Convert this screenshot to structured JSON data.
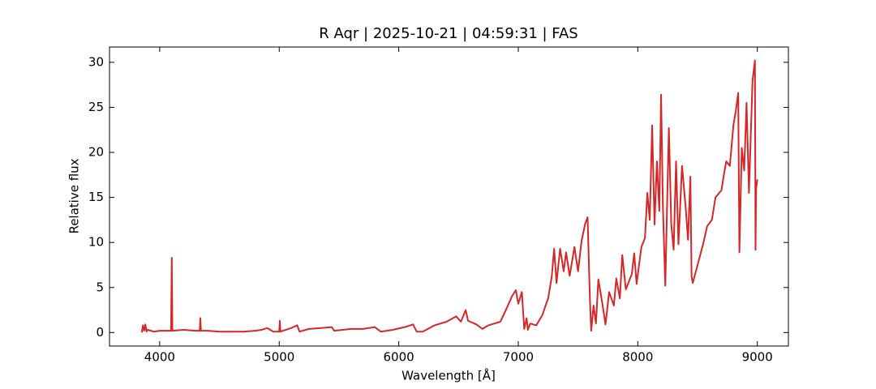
{
  "chart_data": {
    "type": "line",
    "title": "R Aqr | 2025-10-21 | 04:59:31 | FAS",
    "xlabel": "Wavelength [Å]",
    "ylabel": "Relative flux",
    "xlim": [
      3580,
      9260
    ],
    "ylim": [
      -1.5,
      31.7
    ],
    "xticks": [
      4000,
      5000,
      6000,
      7000,
      8000,
      9000
    ],
    "yticks": [
      0,
      5,
      10,
      15,
      20,
      25,
      30
    ],
    "series": [
      {
        "color": "#d62728",
        "x": [
          3850,
          3860,
          3870,
          3880,
          3890,
          3900,
          3950,
          4000,
          4050,
          4095,
          4101,
          4106,
          4200,
          4300,
          4335,
          4340,
          4345,
          4400,
          4500,
          4600,
          4700,
          4800,
          4850,
          4900,
          4950,
          5000,
          5005,
          5010,
          5100,
          5150,
          5170,
          5250,
          5350,
          5440,
          5460,
          5600,
          5700,
          5800,
          5850,
          5950,
          6050,
          6120,
          6150,
          6200,
          6300,
          6400,
          6480,
          6520,
          6560,
          6580,
          6650,
          6700,
          6750,
          6850,
          6900,
          6950,
          6980,
          7000,
          7030,
          7050,
          7070,
          7080,
          7100,
          7150,
          7200,
          7250,
          7280,
          7300,
          7320,
          7350,
          7380,
          7400,
          7430,
          7470,
          7500,
          7530,
          7560,
          7580,
          7590,
          7600,
          7610,
          7630,
          7650,
          7670,
          7700,
          7730,
          7760,
          7800,
          7820,
          7850,
          7870,
          7900,
          7950,
          7970,
          7990,
          8030,
          8060,
          8080,
          8100,
          8120,
          8140,
          8160,
          8180,
          8195,
          8210,
          8230,
          8250,
          8260,
          8280,
          8300,
          8320,
          8340,
          8370,
          8400,
          8420,
          8440,
          8450,
          8460,
          8500,
          8550,
          8580,
          8620,
          8650,
          8700,
          8720,
          8740,
          8770,
          8800,
          8820,
          8840,
          8850,
          8870,
          8890,
          8910,
          8930,
          8960,
          8980,
          8985,
          8990,
          9000
        ],
        "values": [
          0,
          0.8,
          0.2,
          0.9,
          0.1,
          0.3,
          0.1,
          0.2,
          0.2,
          0.2,
          8.3,
          0.2,
          0.3,
          0.2,
          0.2,
          1.6,
          0.2,
          0.2,
          0.1,
          0.1,
          0.1,
          0.2,
          0.3,
          0.5,
          0.1,
          0.1,
          1.3,
          0.1,
          0.5,
          0.8,
          0.1,
          0.4,
          0.5,
          0.6,
          0.2,
          0.4,
          0.4,
          0.6,
          0.1,
          0.3,
          0.6,
          0.9,
          0.1,
          0.1,
          0.8,
          1.2,
          1.8,
          1.2,
          2.5,
          1.3,
          0.9,
          0.4,
          0.8,
          1.2,
          2.6,
          4.1,
          4.7,
          3.2,
          4.5,
          0.4,
          1.6,
          0.3,
          1.0,
          0.8,
          1.9,
          3.8,
          6.2,
          9.3,
          5.5,
          9.3,
          6.8,
          8.9,
          6.3,
          9.5,
          6.8,
          10.2,
          12.1,
          12.8,
          8.0,
          3.5,
          0.2,
          3.0,
          1.0,
          5.9,
          3.5,
          0.9,
          4.5,
          3.0,
          6.0,
          3.8,
          8.6,
          4.8,
          6.5,
          8.8,
          5.4,
          9.5,
          10.5,
          15.5,
          12.5,
          23.0,
          12.0,
          19.0,
          13.5,
          26.4,
          14.0,
          5.2,
          17.0,
          22.7,
          12.0,
          9.2,
          19.0,
          9.8,
          18.5,
          14.0,
          10.3,
          17.3,
          6.2,
          5.5,
          7.5,
          10.0,
          11.8,
          12.5,
          15.0,
          15.8,
          17.5,
          19.0,
          18.5,
          23.0,
          24.6,
          26.6,
          8.9,
          20.5,
          18.0,
          25.5,
          15.5,
          28.0,
          30.2,
          9.2,
          16.0,
          17.0
        ]
      }
    ]
  }
}
